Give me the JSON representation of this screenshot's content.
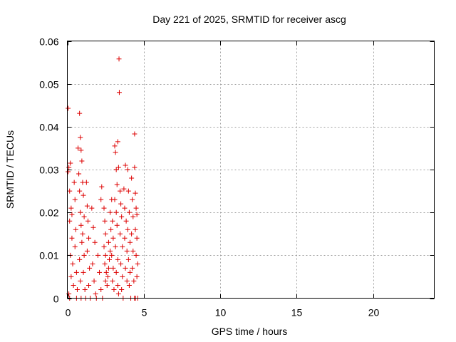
{
  "chart_data": {
    "type": "scatter",
    "title": "Day 221 of 2025, SRMTID for receiver ascg",
    "xlabel": "GPS time / hours",
    "ylabel": "SRMTID / TECUs",
    "xlim": [
      0,
      24
    ],
    "ylim": [
      0,
      0.06
    ],
    "x_ticks": [
      0,
      5,
      10,
      15,
      20
    ],
    "x_tick_labels": [
      "0",
      "5",
      "10",
      "15",
      "20"
    ],
    "y_ticks": [
      0,
      0.01,
      0.02,
      0.03,
      0.04,
      0.05,
      0.06
    ],
    "y_tick_labels": [
      "0",
      "0.01",
      "0.02",
      "0.03",
      "0.04",
      "0.05",
      "0.06"
    ],
    "grid": true,
    "marker": "+",
    "color": "#dd0000",
    "series": [
      {
        "name": "SRMTID",
        "points": [
          [
            0.05,
            0.0443
          ],
          [
            0.05,
            0.0295
          ],
          [
            0.1,
            0.0305
          ],
          [
            0.15,
            0.025
          ],
          [
            0.2,
            0.0315
          ],
          [
            0.25,
            0.021
          ],
          [
            0.3,
            0.0195
          ],
          [
            0.15,
            0.018
          ],
          [
            0.3,
            0.014
          ],
          [
            0.2,
            0.01
          ],
          [
            0.35,
            0.008
          ],
          [
            0.25,
            0.005
          ],
          [
            0.4,
            0.003
          ],
          [
            0.1,
            0.001
          ],
          [
            0.15,
            0.0
          ],
          [
            0.45,
            0.027
          ],
          [
            0.5,
            0.023
          ],
          [
            0.55,
            0.016
          ],
          [
            0.5,
            0.012
          ],
          [
            0.6,
            0.006
          ],
          [
            0.65,
            0.002
          ],
          [
            0.6,
            0.0
          ],
          [
            0.7,
            0.035
          ],
          [
            0.75,
            0.029
          ],
          [
            0.8,
            0.025
          ],
          [
            0.8,
            0.0431
          ],
          [
            0.85,
            0.0375
          ],
          [
            0.9,
            0.0345
          ],
          [
            0.95,
            0.032
          ],
          [
            0.85,
            0.02
          ],
          [
            0.9,
            0.017
          ],
          [
            0.95,
            0.013
          ],
          [
            0.8,
            0.009
          ],
          [
            0.85,
            0.004
          ],
          [
            0.9,
            0.0
          ],
          [
            1.0,
            0.027
          ],
          [
            1.05,
            0.024
          ],
          [
            1.1,
            0.019
          ],
          [
            1.0,
            0.015
          ],
          [
            1.1,
            0.01
          ],
          [
            1.05,
            0.006
          ],
          [
            1.15,
            0.002
          ],
          [
            1.2,
            0.0
          ],
          [
            1.25,
            0.027
          ],
          [
            1.3,
            0.0215
          ],
          [
            1.35,
            0.018
          ],
          [
            1.4,
            0.014
          ],
          [
            1.3,
            0.011
          ],
          [
            1.45,
            0.007
          ],
          [
            1.4,
            0.003
          ],
          [
            1.5,
            0.0
          ],
          [
            1.6,
            0.021
          ],
          [
            1.7,
            0.0165
          ],
          [
            1.8,
            0.013
          ],
          [
            1.65,
            0.008
          ],
          [
            1.75,
            0.004
          ],
          [
            1.85,
            0.001
          ],
          [
            1.9,
            0.0
          ],
          [
            2.0,
            0.01
          ],
          [
            2.1,
            0.006
          ],
          [
            2.2,
            0.002
          ],
          [
            2.3,
            0.0
          ],
          [
            2.2,
            0.023
          ],
          [
            2.25,
            0.026
          ],
          [
            2.4,
            0.021
          ],
          [
            2.45,
            0.018
          ],
          [
            2.5,
            0.015
          ],
          [
            2.4,
            0.012
          ],
          [
            2.5,
            0.01
          ],
          [
            2.45,
            0.008
          ],
          [
            2.55,
            0.006
          ],
          [
            2.5,
            0.004
          ],
          [
            2.6,
            0.003
          ],
          [
            2.65,
            0.005
          ],
          [
            2.7,
            0.007
          ],
          [
            2.75,
            0.009
          ],
          [
            2.8,
            0.011
          ],
          [
            2.7,
            0.013
          ],
          [
            2.85,
            0.016
          ],
          [
            2.8,
            0.02
          ],
          [
            2.9,
            0.023
          ],
          [
            2.95,
            0.018
          ],
          [
            3.0,
            0.014
          ],
          [
            2.9,
            0.01
          ],
          [
            3.0,
            0.007
          ],
          [
            2.95,
            0.004
          ],
          [
            3.05,
            0.002
          ],
          [
            3.1,
            0.0355
          ],
          [
            3.15,
            0.034
          ],
          [
            3.2,
            0.03
          ],
          [
            3.25,
            0.0265
          ],
          [
            3.1,
            0.023
          ],
          [
            3.2,
            0.02
          ],
          [
            3.25,
            0.017
          ],
          [
            3.15,
            0.012
          ],
          [
            3.3,
            0.009
          ],
          [
            3.2,
            0.006
          ],
          [
            3.3,
            0.003
          ],
          [
            3.35,
            0.001
          ],
          [
            3.3,
            0.0365
          ],
          [
            3.35,
            0.0305
          ],
          [
            3.38,
            0.0558
          ],
          [
            3.4,
            0.048
          ],
          [
            3.45,
            0.025
          ],
          [
            3.5,
            0.022
          ],
          [
            3.55,
            0.019
          ],
          [
            3.45,
            0.015
          ],
          [
            3.6,
            0.012
          ],
          [
            3.5,
            0.008
          ],
          [
            3.6,
            0.005
          ],
          [
            3.55,
            0.002
          ],
          [
            3.65,
            0.0
          ],
          [
            3.7,
            0.0255
          ],
          [
            3.75,
            0.021
          ],
          [
            3.8,
            0.031
          ],
          [
            3.85,
            0.018
          ],
          [
            3.75,
            0.014
          ],
          [
            3.9,
            0.011
          ],
          [
            3.8,
            0.007
          ],
          [
            3.9,
            0.004
          ],
          [
            3.95,
            0.03
          ],
          [
            4.0,
            0.025
          ],
          [
            4.05,
            0.02
          ],
          [
            3.95,
            0.016
          ],
          [
            4.1,
            0.013
          ],
          [
            4.0,
            0.009
          ],
          [
            4.1,
            0.006
          ],
          [
            4.05,
            0.003
          ],
          [
            4.15,
            0.0
          ],
          [
            4.2,
            0.028
          ],
          [
            4.25,
            0.023
          ],
          [
            4.3,
            0.019
          ],
          [
            4.2,
            0.015
          ],
          [
            4.3,
            0.011
          ],
          [
            4.25,
            0.007
          ],
          [
            4.35,
            0.004
          ],
          [
            4.4,
            0.0383
          ],
          [
            4.4,
            0.0305
          ],
          [
            4.45,
            0.0245
          ],
          [
            4.5,
            0.021
          ],
          [
            4.55,
            0.0195
          ],
          [
            4.45,
            0.016
          ],
          [
            4.55,
            0.014
          ],
          [
            4.5,
            0.01
          ],
          [
            4.6,
            0.008
          ],
          [
            4.55,
            0.005
          ],
          [
            4.6,
            0.0
          ],
          [
            4.4,
            0.0
          ],
          [
            4.45,
            0.0
          ]
        ]
      }
    ]
  }
}
